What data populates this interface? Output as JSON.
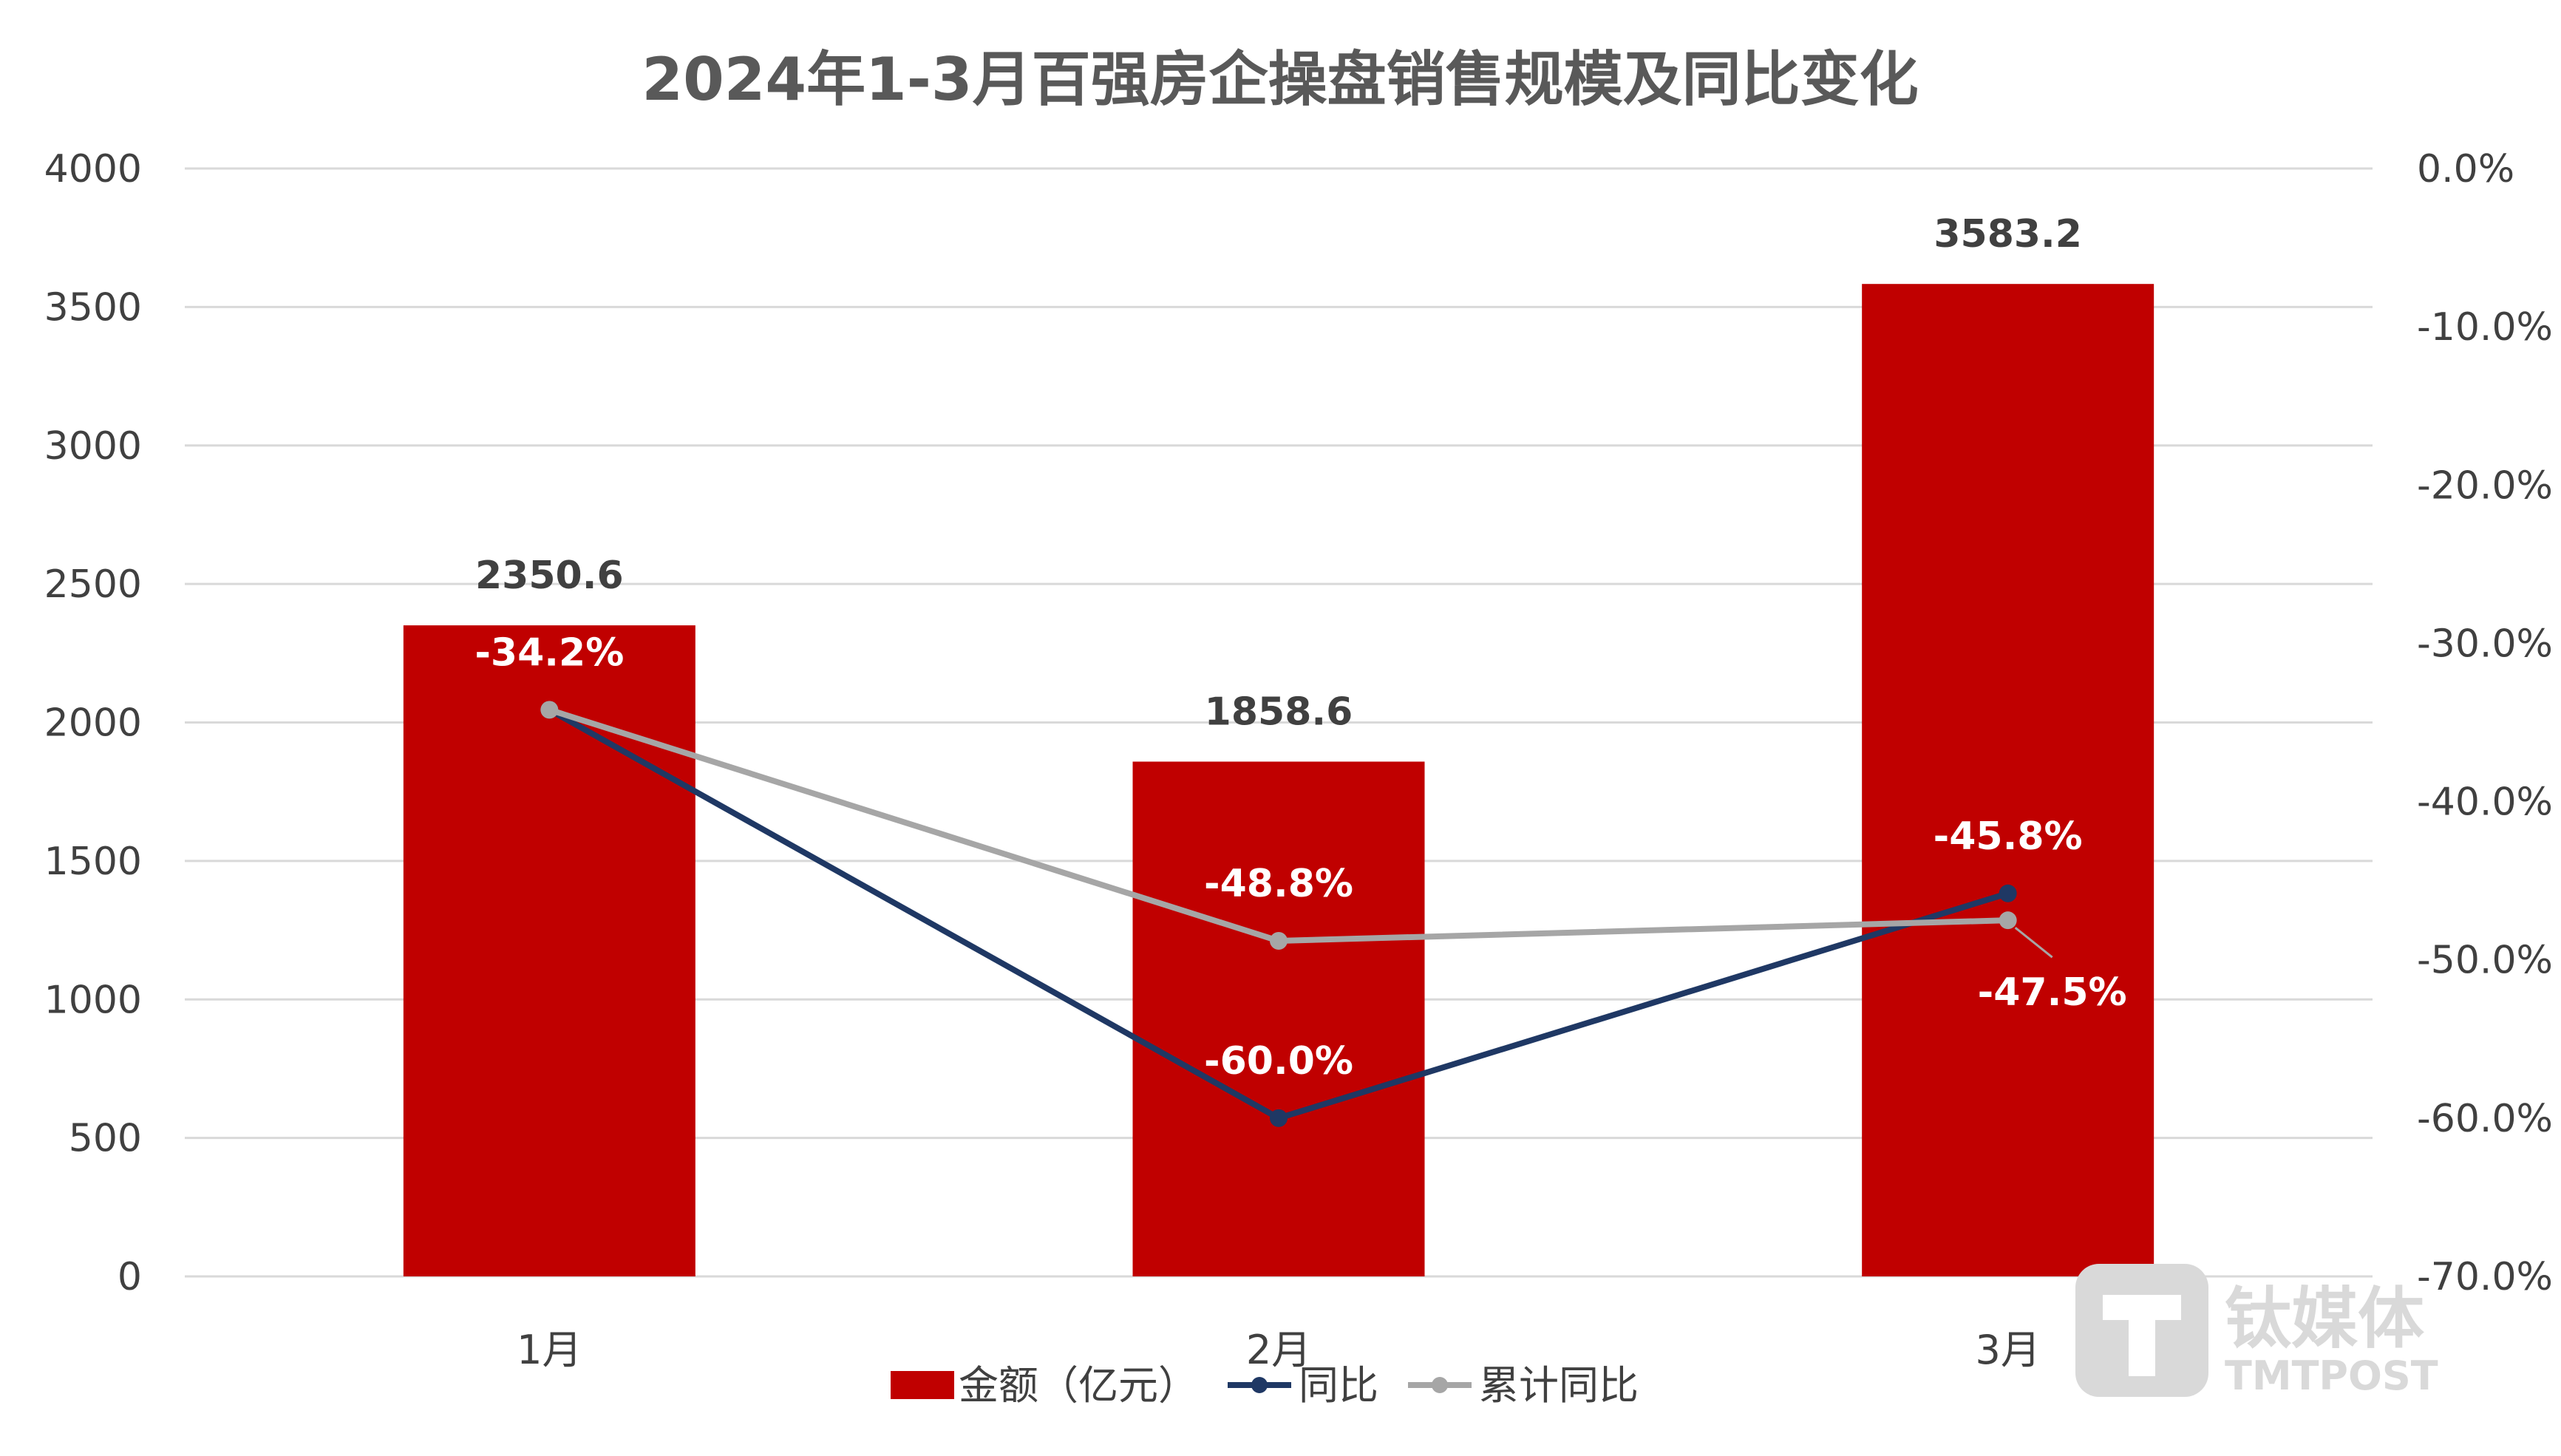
{
  "colors": {
    "bar": "#c00000",
    "yoy_line": "#1f3864",
    "cum_line": "#a6a6a6",
    "grid": "#d9d9d9",
    "watermark": "#d9d9d9"
  },
  "watermark": {
    "icon": "tmtpost-logo-icon",
    "cn": "钛媒体",
    "en": "TMTPOST"
  },
  "chart_data": {
    "type": "bar",
    "title": "2024年1-3月百强房企操盘销售规模及同比变化",
    "categories": [
      "1月",
      "2月",
      "3月"
    ],
    "ylim": [
      0,
      4000
    ],
    "yticks": [
      0,
      500,
      1000,
      1500,
      2000,
      2500,
      3000,
      3500,
      4000
    ],
    "y2lim": [
      -70.0,
      0.0
    ],
    "y2ticks": [
      -70.0,
      -60.0,
      -50.0,
      -40.0,
      -30.0,
      -20.0,
      -10.0,
      0.0
    ],
    "grid": true,
    "legend_position": "bottom",
    "series": [
      {
        "name": "金额（亿元）",
        "kind": "bar",
        "axis": "left",
        "values": [
          2350.6,
          1858.6,
          3583.2
        ],
        "labels": [
          "2350.6",
          "1858.6",
          "3583.2"
        ]
      },
      {
        "name": "同比",
        "kind": "line",
        "axis": "right",
        "values": [
          -34.2,
          -60.0,
          -45.8
        ],
        "labels": [
          "-34.2%",
          "-60.0%",
          "-45.8%"
        ]
      },
      {
        "name": "累计同比",
        "kind": "line",
        "axis": "right",
        "values": [
          -34.2,
          -48.8,
          -47.5
        ],
        "labels": [
          "",
          "-48.8%",
          "-47.5%"
        ]
      }
    ]
  }
}
